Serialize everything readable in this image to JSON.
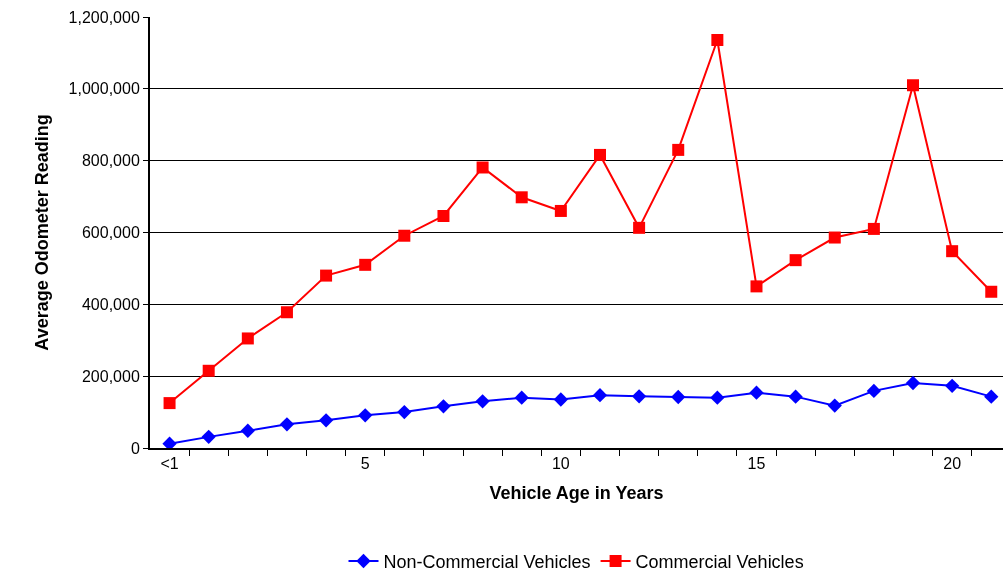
{
  "chart_data": {
    "type": "line",
    "xlabel": "Vehicle Age in Years",
    "ylabel": "Average Odometer Reading",
    "categories": [
      "<1",
      null,
      null,
      null,
      null,
      "5",
      null,
      null,
      null,
      null,
      "10",
      null,
      null,
      null,
      null,
      "15",
      null,
      null,
      null,
      null,
      "20",
      null
    ],
    "series": [
      {
        "name": "Non-Commercial Vehicles",
        "color": "#0000ff",
        "marker": "diamond",
        "values": [
          12000,
          31000,
          48000,
          66000,
          77000,
          91000,
          100000,
          116000,
          130000,
          140000,
          135000,
          147000,
          144000,
          142000,
          140000,
          154000,
          143000,
          118000,
          159000,
          181000,
          173000,
          143000
        ]
      },
      {
        "name": "Commercial Vehicles",
        "color": "#ff0000",
        "marker": "square",
        "values": [
          125000,
          215000,
          305000,
          378000,
          480000,
          510000,
          591000,
          646000,
          781000,
          698000,
          660000,
          816000,
          613000,
          830000,
          1136000,
          450000,
          523000,
          586000,
          610000,
          1010000,
          548000,
          435000
        ]
      }
    ],
    "ylim": [
      0,
      1200000
    ],
    "yticks": [
      {
        "value": 0,
        "label": "0"
      },
      {
        "value": 200000,
        "label": "200,000"
      },
      {
        "value": 400000,
        "label": "400,000"
      },
      {
        "value": 600000,
        "label": "600,000"
      },
      {
        "value": 800000,
        "label": "800,000"
      },
      {
        "value": 1000000,
        "label": "1,000,000"
      },
      {
        "value": 1200000,
        "label": "1,200,000"
      }
    ],
    "grid": "y",
    "legend": "bottom",
    "line_style": "solid"
  }
}
